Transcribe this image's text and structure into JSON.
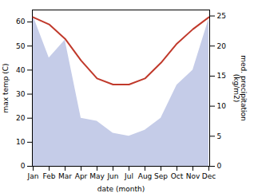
{
  "chart_data": {
    "type": "line",
    "categories": [
      "Jan",
      "Feb",
      "Mar",
      "Apr",
      "May",
      "Jun",
      "Jul",
      "Aug",
      "Sep",
      "Oct",
      "Nov",
      "Dec"
    ],
    "xlabel": "date (month)",
    "ylabel": "max temp (C)",
    "y2label": "med. precipitation\n(kg/m2)",
    "series": [
      {
        "type": "area",
        "axis": "y2",
        "color": "#c5cce8",
        "values": [
          25.0,
          18.0,
          21.0,
          8.0,
          7.5,
          5.5,
          5.0,
          6.0,
          8.0,
          13.5,
          16.0,
          24.5
        ]
      },
      {
        "type": "line",
        "color": "#c0392b",
        "values": [
          62.0,
          59.0,
          53.0,
          44.0,
          36.5,
          34.0,
          34.0,
          36.5,
          43.0,
          51.0,
          57.0,
          62.0
        ]
      }
    ],
    "ylim": [
      0,
      65
    ],
    "yticks": [
      0,
      10,
      20,
      30,
      40,
      50,
      60
    ],
    "y2lim": [
      0,
      26
    ],
    "y2ticks": [
      0,
      5,
      10,
      15,
      20,
      25
    ]
  }
}
